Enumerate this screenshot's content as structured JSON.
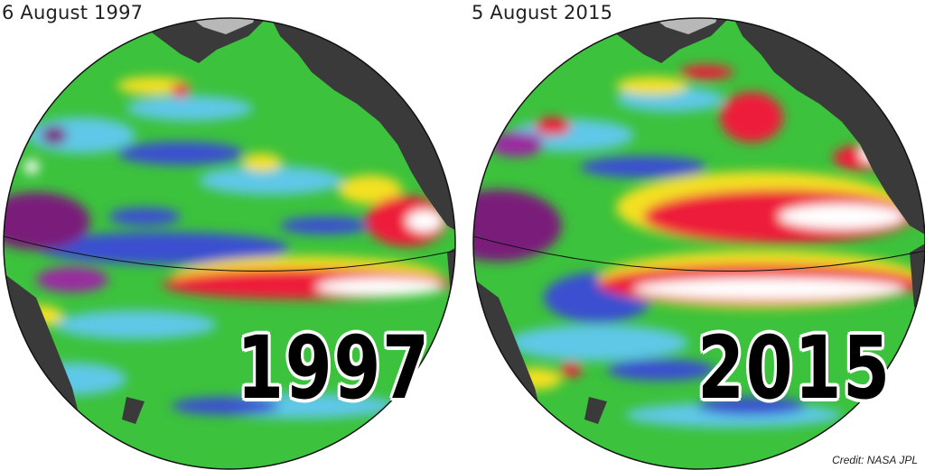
{
  "panels": [
    {
      "date": "6 August 1997",
      "year": "1997"
    },
    {
      "date": "5 August 2015",
      "year": "2015"
    }
  ],
  "credit": "Credit: NASA JPL",
  "colors": {
    "ocean_base": "#3cc23c",
    "land": "#3a3a3a",
    "ice": "#b8b8b8",
    "cool": "#3a4fd0",
    "very_cool": "#7a1a7a",
    "warm": "#f4e020",
    "hot": "#ee1c3a",
    "very_hot": "#ffffff"
  }
}
